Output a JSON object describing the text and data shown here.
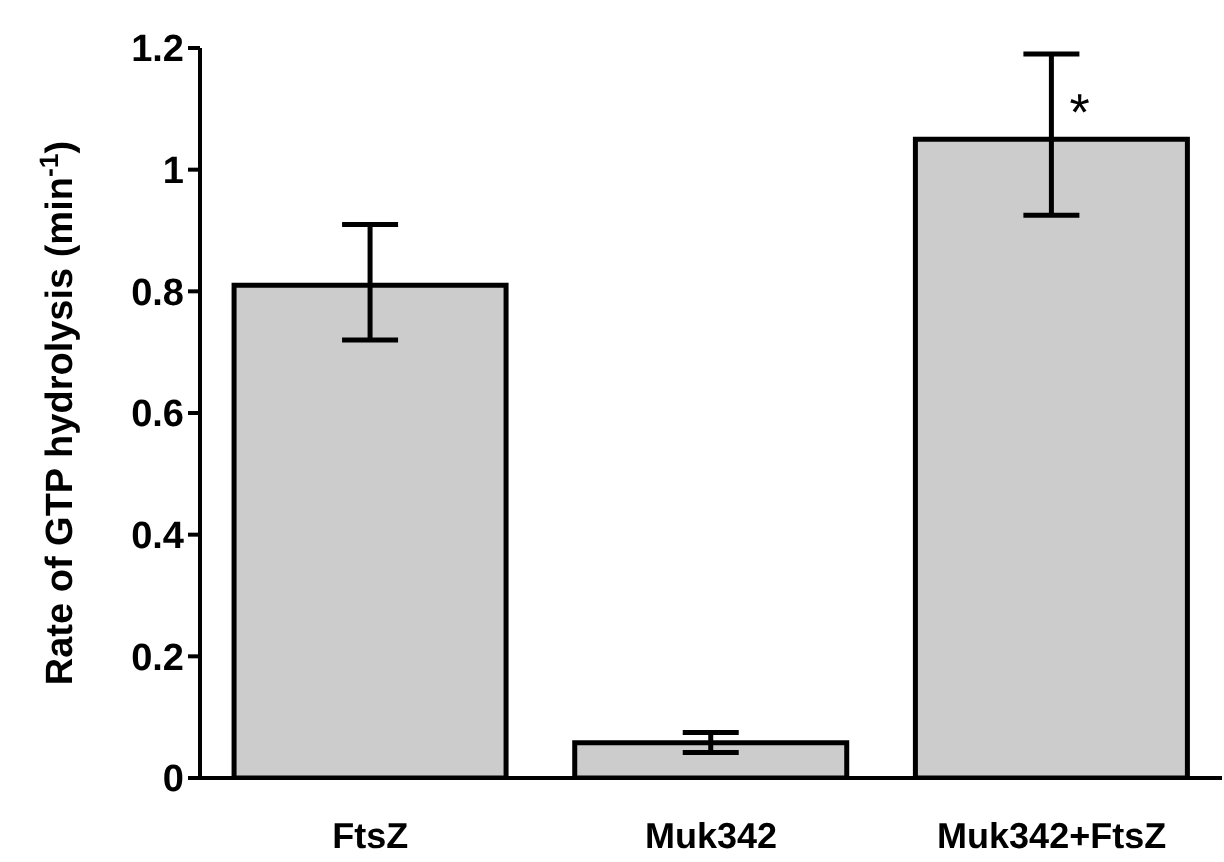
{
  "chart_data": {
    "type": "bar",
    "ylabel": "Rate of GTP hydrolysis (min$^{-1}$)",
    "categories": [
      "FtsZ",
      "Muk342",
      "Muk342+FtsZ"
    ],
    "values": [
      0.81,
      0.058,
      1.05
    ],
    "errors": [
      [
        0.72,
        0.91
      ],
      [
        0.042,
        0.075
      ],
      [
        0.925,
        1.19
      ]
    ],
    "color": "#cccccc",
    "ylim": [
      0,
      1.2
    ],
    "yticks": [
      0,
      0.2,
      0.4,
      0.6,
      0.8,
      {
        "value": 1,
        "label": "1"
      },
      1.2
    ],
    "annotations": [
      {
        "text": "*",
        "x": "Muk342+FtsZ",
        "y": 1.095
      }
    ],
    "grid": false,
    "legend": false
  }
}
